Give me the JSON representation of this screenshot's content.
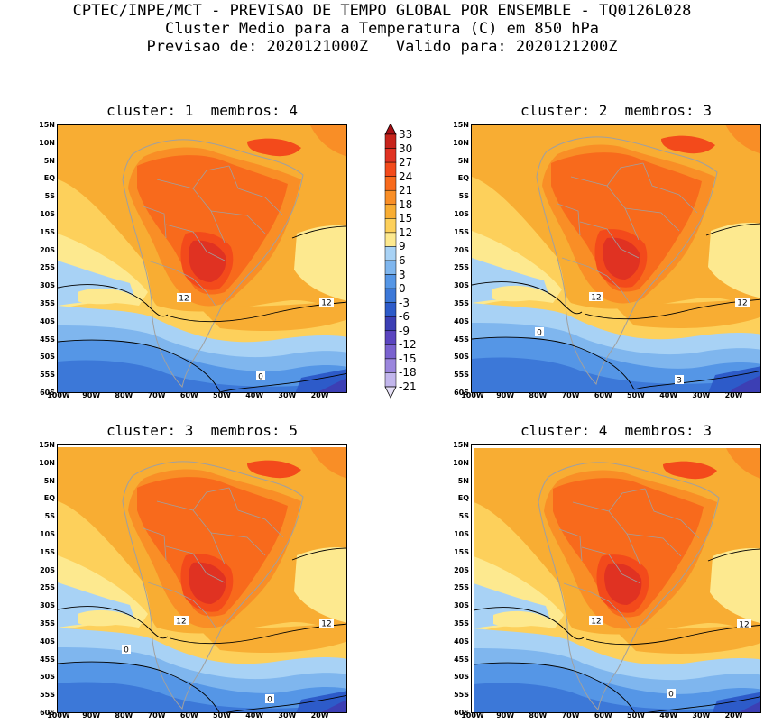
{
  "header": {
    "line1": "CPTEC/INPE/MCT - PREVISAO DE TEMPO GLOBAL POR ENSEMBLE - TQ0126L028",
    "line2": "Cluster Medio para a Temperatura (C) em 850 hPa",
    "line3": "Previsao de: 2020121000Z   Valido para: 2020121200Z"
  },
  "panels": [
    {
      "title": "cluster: 1  membros: 4",
      "contour_labels": [
        "12",
        "12",
        "0"
      ]
    },
    {
      "title": "cluster: 2  membros: 3",
      "contour_labels": [
        "12",
        "12",
        "0",
        "3"
      ]
    },
    {
      "title": "cluster: 3  membros: 5",
      "contour_labels": [
        "12",
        "12",
        "0",
        "0"
      ]
    },
    {
      "title": "cluster: 4  membros: 3",
      "contour_labels": [
        "12",
        "12",
        "0"
      ]
    }
  ],
  "axes": {
    "lat_labels": [
      "15N",
      "10N",
      "5N",
      "EQ",
      "5S",
      "10S",
      "15S",
      "20S",
      "25S",
      "30S",
      "35S",
      "40S",
      "45S",
      "50S",
      "55S",
      "60S"
    ],
    "lon_labels": [
      "100W",
      "90W",
      "80W",
      "70W",
      "60W",
      "50W",
      "40W",
      "30W",
      "20W"
    ]
  },
  "colorbar": {
    "labels": [
      "33",
      "30",
      "27",
      "24",
      "21",
      "18",
      "15",
      "12",
      "9",
      "6",
      "3",
      "0",
      "-3",
      "-6",
      "-9",
      "-12",
      "-15",
      "-18",
      "-21"
    ],
    "colors": [
      "#a50f15",
      "#c7241c",
      "#e03222",
      "#f34a1b",
      "#f86a1c",
      "#f98e26",
      "#f8ad33",
      "#fdd05b",
      "#fde98f",
      "#a8d2f5",
      "#7fb6ee",
      "#5596e6",
      "#3c78d8",
      "#2d5bc9",
      "#3c3fb4",
      "#5b45c0",
      "#7a62cf",
      "#9b86dd",
      "#c2b6ec",
      "#e6e0f7"
    ]
  }
}
